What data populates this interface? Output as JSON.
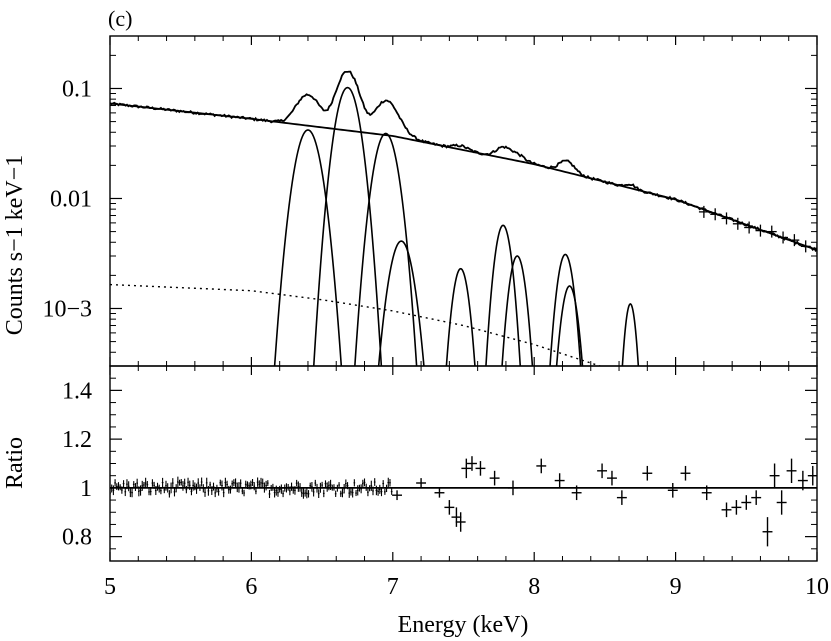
{
  "panel_label": "(c)",
  "chart_data": [
    {
      "type": "line",
      "panel": "top",
      "xlabel": "Energy (keV)",
      "ylabel": "Counts s−1 keV−1",
      "yscale": "log",
      "xlim": [
        5,
        10
      ],
      "ylim": [
        0.0003,
        0.3
      ],
      "x_ticks": [
        5,
        6,
        7,
        8,
        9,
        10
      ],
      "y_ticks": [
        {
          "value": 0.1,
          "label": "0.1"
        },
        {
          "value": 0.01,
          "label": "0.01"
        },
        {
          "value": 0.001,
          "label": "10−3"
        }
      ],
      "continuum": {
        "x": [
          5,
          6,
          7,
          8,
          9,
          10
        ],
        "y": [
          0.073,
          0.053,
          0.037,
          0.0205,
          0.0098,
          0.0034
        ]
      },
      "dotted_component": {
        "x": [
          5,
          6,
          6.5,
          7,
          7.5,
          8,
          8.5
        ],
        "y": [
          0.00165,
          0.00145,
          0.0012,
          0.00095,
          0.0007,
          0.00047,
          0.00029
        ]
      },
      "gaussian_lines": [
        {
          "center": 6.4,
          "peak": 0.042,
          "sigma": 0.075
        },
        {
          "center": 6.68,
          "peak": 0.102,
          "sigma": 0.07
        },
        {
          "center": 6.95,
          "peak": 0.039,
          "sigma": 0.07
        },
        {
          "center": 7.06,
          "peak": 0.0041,
          "sigma": 0.07
        },
        {
          "center": 7.48,
          "peak": 0.0023,
          "sigma": 0.05
        },
        {
          "center": 7.78,
          "peak": 0.0057,
          "sigma": 0.05
        },
        {
          "center": 7.88,
          "peak": 0.003,
          "sigma": 0.05
        },
        {
          "center": 8.22,
          "peak": 0.0031,
          "sigma": 0.05
        },
        {
          "center": 8.25,
          "peak": 0.0016,
          "sigma": 0.05
        },
        {
          "center": 8.68,
          "peak": 0.0011,
          "sigma": 0.035
        }
      ]
    },
    {
      "type": "scatter",
      "panel": "bottom",
      "xlabel": "Energy (keV)",
      "ylabel": "Ratio",
      "xlim": [
        5,
        10
      ],
      "ylim": [
        0.7,
        1.5
      ],
      "x_ticks": [
        5,
        6,
        7,
        8,
        9,
        10
      ],
      "y_ticks": [
        {
          "value": 0.8,
          "label": "0.8"
        },
        {
          "value": 1,
          "label": "1"
        },
        {
          "value": 1.2,
          "label": "1.2"
        },
        {
          "value": 1.4,
          "label": "1.4"
        }
      ],
      "reference_line": 1,
      "points": [
        {
          "x": 7.03,
          "y": 0.97,
          "err": 0.02
        },
        {
          "x": 7.2,
          "y": 1.02,
          "err": 0.02
        },
        {
          "x": 7.33,
          "y": 0.98,
          "err": 0.02
        },
        {
          "x": 7.4,
          "y": 0.92,
          "err": 0.03
        },
        {
          "x": 7.45,
          "y": 0.88,
          "err": 0.04
        },
        {
          "x": 7.48,
          "y": 0.86,
          "err": 0.04
        },
        {
          "x": 7.52,
          "y": 1.08,
          "err": 0.04
        },
        {
          "x": 7.56,
          "y": 1.1,
          "err": 0.03
        },
        {
          "x": 7.62,
          "y": 1.08,
          "err": 0.03
        },
        {
          "x": 7.72,
          "y": 1.04,
          "err": 0.03
        },
        {
          "x": 7.85,
          "y": 1.0,
          "err": 0.03
        },
        {
          "x": 8.05,
          "y": 1.09,
          "err": 0.03
        },
        {
          "x": 8.18,
          "y": 1.03,
          "err": 0.03
        },
        {
          "x": 8.3,
          "y": 0.98,
          "err": 0.03
        },
        {
          "x": 8.48,
          "y": 1.07,
          "err": 0.03
        },
        {
          "x": 8.55,
          "y": 1.04,
          "err": 0.03
        },
        {
          "x": 8.62,
          "y": 0.96,
          "err": 0.03
        },
        {
          "x": 8.8,
          "y": 1.06,
          "err": 0.03
        },
        {
          "x": 8.98,
          "y": 0.99,
          "err": 0.03
        },
        {
          "x": 9.07,
          "y": 1.06,
          "err": 0.03
        },
        {
          "x": 9.22,
          "y": 0.98,
          "err": 0.03
        },
        {
          "x": 9.36,
          "y": 0.91,
          "err": 0.03
        },
        {
          "x": 9.43,
          "y": 0.92,
          "err": 0.03
        },
        {
          "x": 9.5,
          "y": 0.94,
          "err": 0.03
        },
        {
          "x": 9.57,
          "y": 0.96,
          "err": 0.03
        },
        {
          "x": 9.65,
          "y": 0.82,
          "err": 0.06
        },
        {
          "x": 9.7,
          "y": 1.05,
          "err": 0.05
        },
        {
          "x": 9.75,
          "y": 0.94,
          "err": 0.05
        },
        {
          "x": 9.82,
          "y": 1.07,
          "err": 0.05
        },
        {
          "x": 9.9,
          "y": 1.03,
          "err": 0.04
        },
        {
          "x": 9.97,
          "y": 1.05,
          "err": 0.04
        }
      ]
    }
  ]
}
